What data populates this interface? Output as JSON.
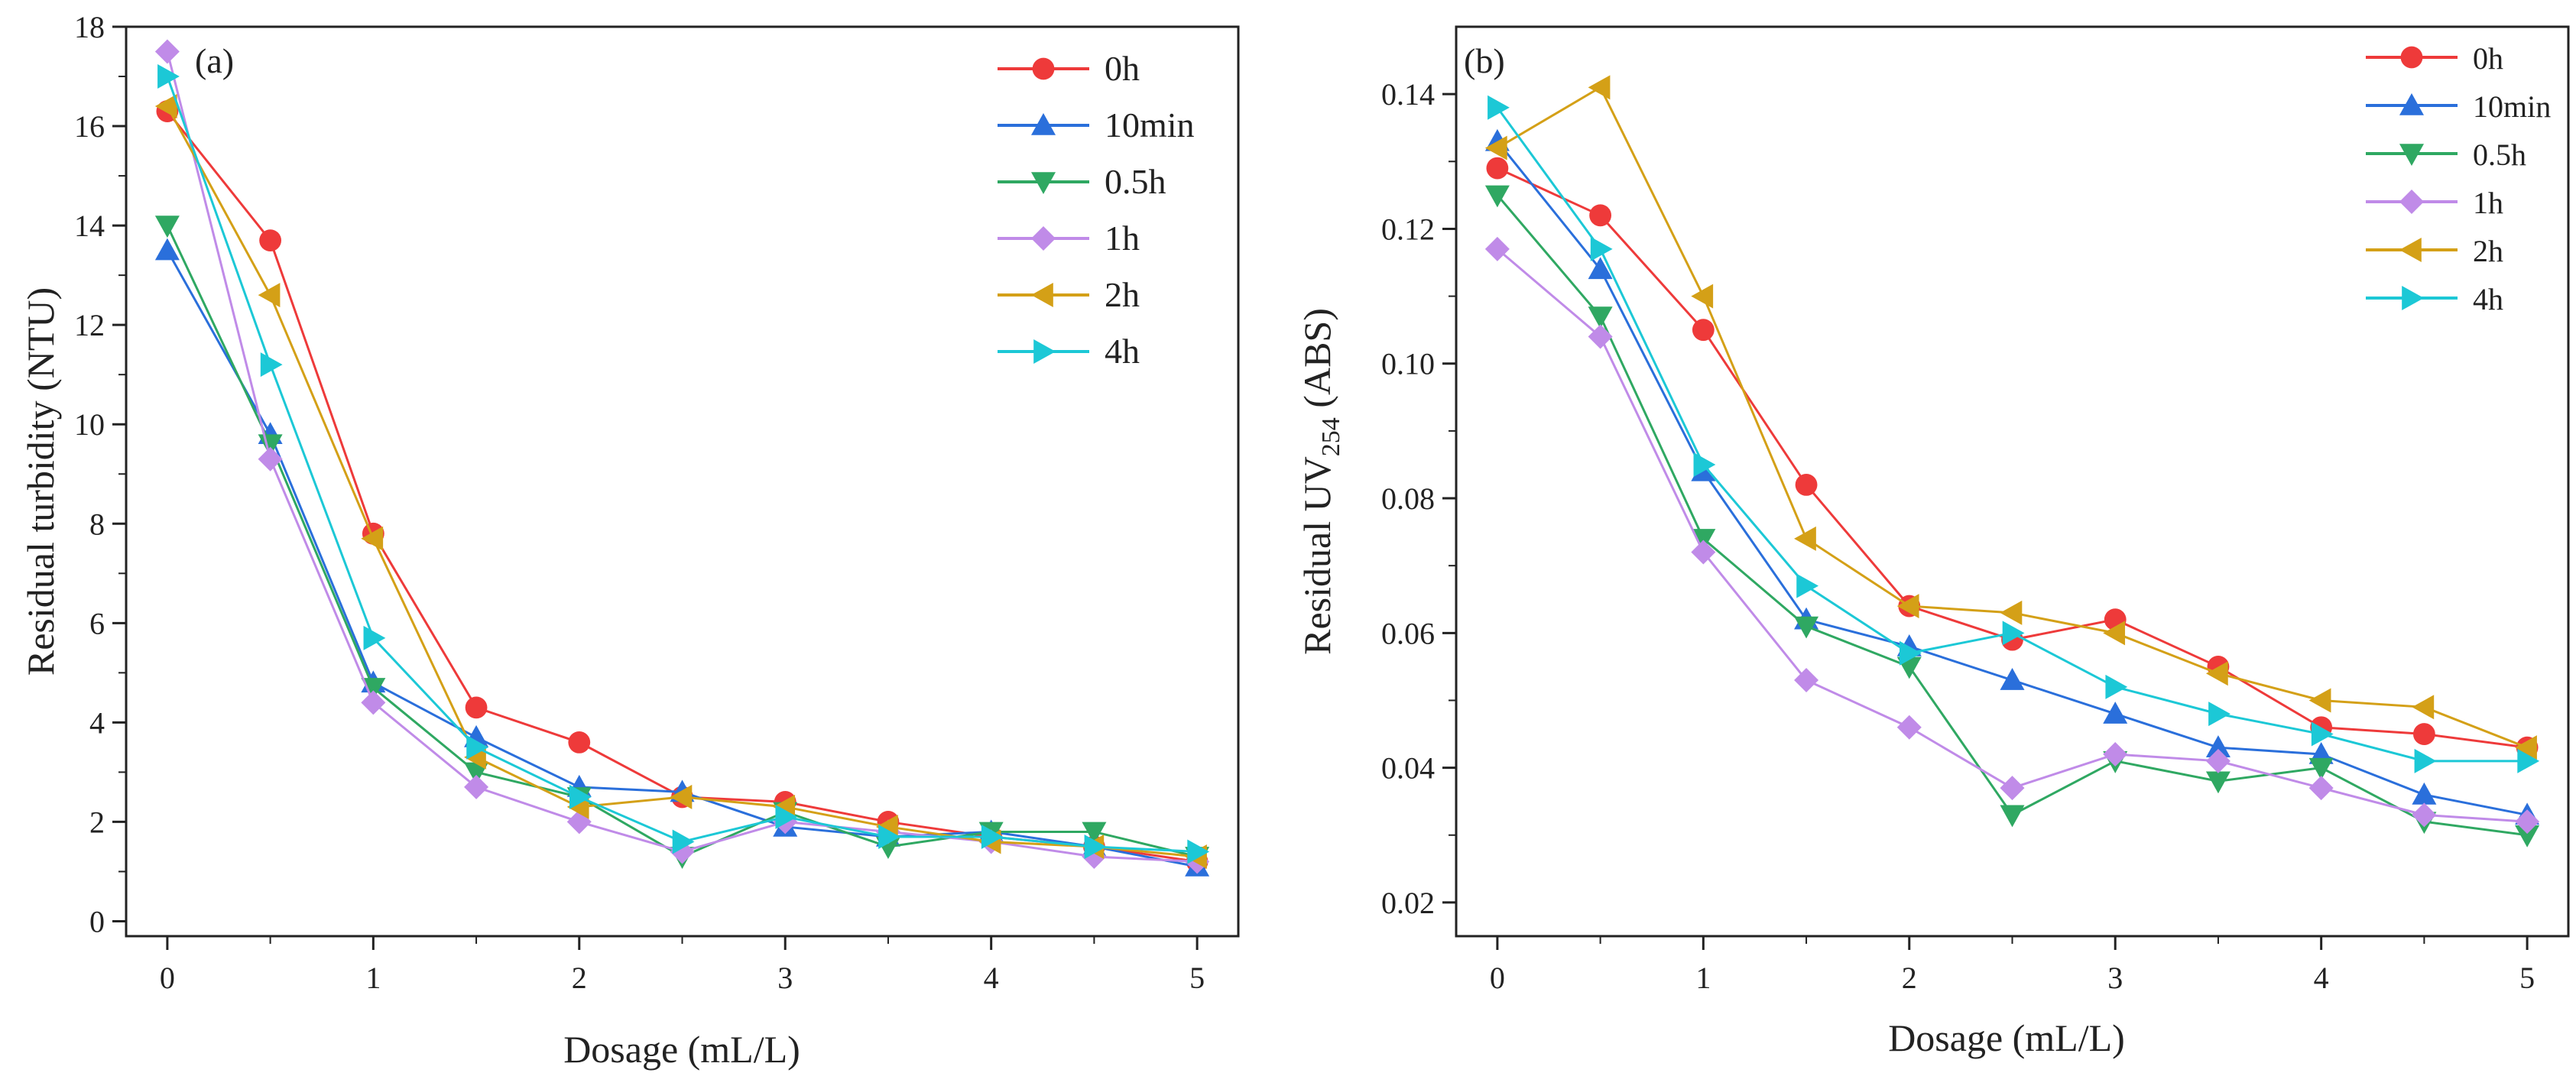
{
  "figure": {
    "panels": [
      {
        "panel_label": "(a)",
        "xlabel": "Dosage (mL/L)",
        "ylabel": "Residual turbidity (NTU)",
        "ylabel_sub": ""
      },
      {
        "panel_label": "(b)",
        "xlabel": "Dosage (mL/L)",
        "ylabel": "Residual UV",
        "ylabel_sub": "254",
        "ylabel_suffix": " (ABS)"
      }
    ]
  },
  "chart_data": [
    {
      "type": "line",
      "panel": "(a)",
      "title": "",
      "xlabel": "Dosage (mL/L)",
      "ylabel": "Residual turbidity (NTU)",
      "xlim": [
        -0.2,
        5.2
      ],
      "ylim": [
        -0.3,
        18
      ],
      "xticks": [
        0,
        1,
        2,
        3,
        4,
        5
      ],
      "yticks": [
        0,
        2,
        4,
        6,
        8,
        10,
        12,
        14,
        16,
        18
      ],
      "ytick_labels": [
        "0",
        "2",
        "4",
        "6",
        "8",
        "10",
        "12",
        "14",
        "16",
        "18"
      ],
      "legend_position": "top-right",
      "x": [
        0,
        0.5,
        1,
        1.5,
        2,
        2.5,
        3,
        3.5,
        4,
        4.5,
        5
      ],
      "series": [
        {
          "name": "0h",
          "color": "#ee3a3a",
          "marker": "circle",
          "values": [
            16.3,
            13.7,
            7.8,
            4.3,
            3.6,
            2.5,
            2.4,
            2.0,
            1.7,
            1.5,
            1.2
          ]
        },
        {
          "name": "10min",
          "color": "#2a6fdb",
          "marker": "triangle-up",
          "values": [
            13.5,
            9.8,
            4.8,
            3.7,
            2.7,
            2.6,
            1.9,
            1.7,
            1.8,
            1.5,
            1.1
          ]
        },
        {
          "name": "0.5h",
          "color": "#2fa862",
          "marker": "triangle-down",
          "values": [
            14.0,
            9.6,
            4.7,
            3.0,
            2.5,
            1.3,
            2.2,
            1.5,
            1.8,
            1.8,
            1.3
          ]
        },
        {
          "name": "1h",
          "color": "#c08be8",
          "marker": "diamond",
          "values": [
            17.5,
            9.3,
            4.4,
            2.7,
            2.0,
            1.4,
            2.0,
            1.8,
            1.6,
            1.3,
            1.2
          ]
        },
        {
          "name": "2h",
          "color": "#d4a017",
          "marker": "triangle-left",
          "values": [
            16.4,
            12.6,
            7.7,
            3.3,
            2.3,
            2.5,
            2.3,
            1.9,
            1.6,
            1.5,
            1.3
          ]
        },
        {
          "name": "4h",
          "color": "#1cc8d6",
          "marker": "triangle-right",
          "values": [
            17.0,
            11.2,
            5.7,
            3.5,
            2.5,
            1.6,
            2.1,
            1.7,
            1.7,
            1.5,
            1.4
          ]
        }
      ]
    },
    {
      "type": "line",
      "panel": "(b)",
      "title": "",
      "xlabel": "Dosage (mL/L)",
      "ylabel": "Residual UV254 (ABS)",
      "xlim": [
        -0.2,
        5.2
      ],
      "ylim": [
        0.015,
        0.15
      ],
      "xticks": [
        0,
        1,
        2,
        3,
        4,
        5
      ],
      "yticks": [
        0.02,
        0.04,
        0.06,
        0.08,
        0.1,
        0.12,
        0.14
      ],
      "ytick_labels": [
        "0.02",
        "0.04",
        "0.06",
        "0.08",
        "0.10",
        "0.12",
        "0.14"
      ],
      "legend_position": "top-right",
      "x": [
        0,
        0.5,
        1,
        1.5,
        2,
        2.5,
        3,
        3.5,
        4,
        4.5,
        5
      ],
      "series": [
        {
          "name": "0h",
          "color": "#ee3a3a",
          "marker": "circle",
          "values": [
            0.129,
            0.122,
            0.105,
            0.082,
            0.064,
            0.059,
            0.062,
            0.055,
            0.046,
            0.045,
            0.043
          ]
        },
        {
          "name": "10min",
          "color": "#2a6fdb",
          "marker": "triangle-up",
          "values": [
            0.133,
            0.114,
            0.084,
            0.062,
            0.058,
            0.053,
            0.048,
            0.043,
            0.042,
            0.036,
            0.033
          ]
        },
        {
          "name": "0.5h",
          "color": "#2fa862",
          "marker": "triangle-down",
          "values": [
            0.125,
            0.107,
            0.074,
            0.061,
            0.055,
            0.033,
            0.041,
            0.038,
            0.04,
            0.032,
            0.03
          ]
        },
        {
          "name": "1h",
          "color": "#c08be8",
          "marker": "diamond",
          "values": [
            0.117,
            0.104,
            0.072,
            0.053,
            0.046,
            0.037,
            0.042,
            0.041,
            0.037,
            0.033,
            0.032
          ]
        },
        {
          "name": "2h",
          "color": "#d4a017",
          "marker": "triangle-left",
          "values": [
            0.132,
            0.141,
            0.11,
            0.074,
            0.064,
            0.063,
            0.06,
            0.054,
            0.05,
            0.049,
            0.043
          ]
        },
        {
          "name": "4h",
          "color": "#1cc8d6",
          "marker": "triangle-right",
          "values": [
            0.138,
            0.117,
            0.085,
            0.067,
            0.057,
            0.06,
            0.052,
            0.048,
            0.045,
            0.041,
            0.041
          ]
        }
      ]
    }
  ]
}
